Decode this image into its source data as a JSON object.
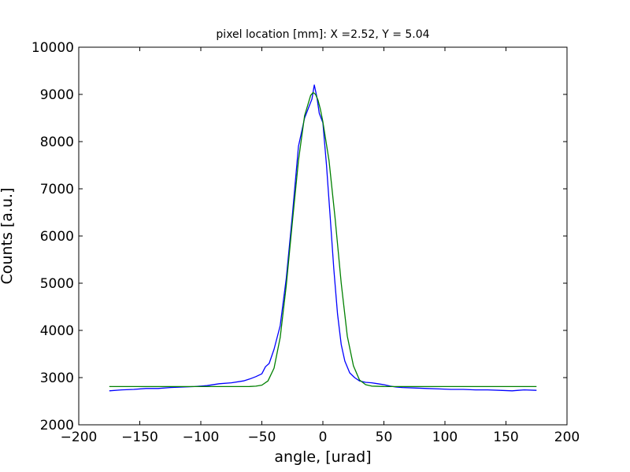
{
  "chart_data": {
    "type": "line",
    "title": "pixel location [mm]: X =2.52, Y = 5.04",
    "xlabel": "angle, [urad]",
    "ylabel": "Counts [a.u.]",
    "xlim": [
      -200,
      200
    ],
    "ylim": [
      2000,
      10000
    ],
    "xticks": [
      -200,
      -150,
      -100,
      -50,
      0,
      50,
      100,
      150,
      200
    ],
    "xtick_labels": [
      "−200",
      "−150",
      "−100",
      "−50",
      "0",
      "50",
      "100",
      "150",
      "200"
    ],
    "yticks": [
      2000,
      3000,
      4000,
      5000,
      6000,
      7000,
      8000,
      9000,
      10000
    ],
    "ytick_labels": [
      "2000",
      "3000",
      "4000",
      "5000",
      "6000",
      "7000",
      "8000",
      "9000",
      "10000"
    ],
    "grid": false,
    "series": [
      {
        "color": "#0000ff",
        "x": [
          -175,
          -165,
          -155,
          -145,
          -135,
          -125,
          -115,
          -105,
          -95,
          -85,
          -75,
          -65,
          -60,
          -55,
          -50,
          -47,
          -44,
          -40,
          -35,
          -30,
          -25,
          -20,
          -15,
          -12,
          -9,
          -7,
          -5,
          -3,
          0,
          3,
          6,
          9,
          12,
          15,
          18,
          22,
          26,
          30,
          35,
          40,
          45,
          50,
          55,
          60,
          65,
          75,
          85,
          95,
          105,
          115,
          125,
          135,
          145,
          155,
          160,
          165,
          175
        ],
        "y": [
          2720,
          2740,
          2750,
          2770,
          2770,
          2790,
          2800,
          2810,
          2830,
          2870,
          2890,
          2930,
          2970,
          3020,
          3080,
          3230,
          3300,
          3600,
          4100,
          5100,
          6450,
          7900,
          8500,
          8700,
          8900,
          9200,
          8950,
          8600,
          8400,
          7500,
          6400,
          5300,
          4350,
          3700,
          3350,
          3100,
          3000,
          2930,
          2900,
          2890,
          2870,
          2850,
          2820,
          2800,
          2790,
          2780,
          2770,
          2760,
          2750,
          2750,
          2740,
          2740,
          2730,
          2720,
          2730,
          2740,
          2730
        ]
      },
      {
        "color": "#008000",
        "x": [
          -175,
          -150,
          -100,
          -70,
          -60,
          -55,
          -50,
          -45,
          -40,
          -35,
          -30,
          -25,
          -20,
          -15,
          -10,
          -8,
          -6,
          -4,
          -2,
          0,
          5,
          10,
          15,
          20,
          25,
          30,
          35,
          40,
          50,
          70,
          100,
          150,
          175
        ],
        "y": [
          2810,
          2810,
          2810,
          2810,
          2812,
          2818,
          2840,
          2930,
          3200,
          3850,
          4950,
          6300,
          7600,
          8550,
          8980,
          9040,
          9000,
          8880,
          8680,
          8420,
          7600,
          6380,
          5000,
          3880,
          3250,
          2950,
          2850,
          2820,
          2811,
          2810,
          2810,
          2810,
          2810
        ]
      }
    ]
  }
}
